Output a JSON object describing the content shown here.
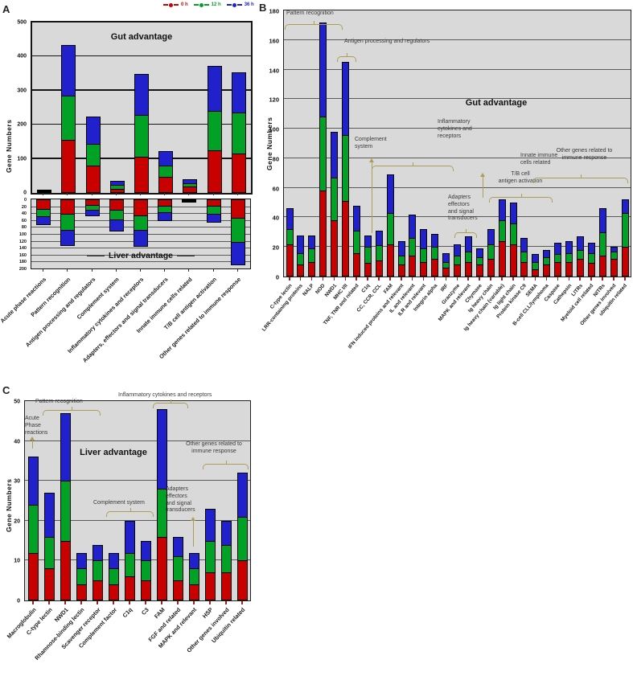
{
  "panel_labels": [
    "A",
    "B",
    "C"
  ],
  "legend": {
    "position": "top-right of panel A",
    "items": [
      {
        "label": "0 h",
        "color": "#C80000"
      },
      {
        "label": "12 h",
        "color": "#00A125"
      },
      {
        "label": "36 h",
        "color": "#2020CC"
      }
    ]
  },
  "chart_data": [
    {
      "panel": "A",
      "type": "bar",
      "subtype": "diverging stacked bars (up = gut, down = liver)",
      "ylabel": "Gene Numbers",
      "value_encoding": "cumulative_stack_top",
      "categories": [
        "Acute phase reactions",
        "Pattern recognition",
        "Antigen processing and regulators",
        "Complement system",
        "Inflammatory cytokines and receptors",
        "Adapters, effectors and signal transducers",
        "Innate immune cells related",
        "T/B cell antigen activation",
        "Other genes related to immune response"
      ],
      "up": {
        "title": "Gut advantage",
        "ylim": [
          0,
          500
        ],
        "yticks": [
          0,
          100,
          200,
          300,
          400,
          500
        ],
        "series": [
          {
            "name": "0 h",
            "color": "#C80000",
            "cumulative": [
              6,
              155,
              80,
              12,
              107,
              48,
              18,
              125,
              115
            ]
          },
          {
            "name": "12 h",
            "color": "#00A125",
            "cumulative": [
              8,
              285,
              145,
              24,
              228,
              80,
              28,
              240,
              235
            ]
          },
          {
            "name": "36 h",
            "color": "#2020CC",
            "cumulative": [
              10,
              435,
              225,
              35,
              348,
              122,
              40,
              372,
              355
            ]
          }
        ]
      },
      "down": {
        "title": "Liver advantage",
        "ylim": [
          0,
          200
        ],
        "yticks": [
          0,
          20,
          40,
          60,
          80,
          100,
          120,
          140,
          160,
          180,
          200
        ],
        "series": [
          {
            "name": "0 h",
            "color": "#C80000",
            "cumulative": [
              30,
              45,
              18,
              32,
              48,
              20,
              3,
              20,
              55
            ]
          },
          {
            "name": "12 h",
            "color": "#00A125",
            "cumulative": [
              50,
              90,
              32,
              60,
              90,
              40,
              6,
              45,
              125
            ]
          },
          {
            "name": "36 h",
            "color": "#2020CC",
            "cumulative": [
              75,
              135,
              48,
              93,
              138,
              62,
              10,
              68,
              190
            ]
          }
        ]
      }
    },
    {
      "panel": "B",
      "type": "bar",
      "subtype": "stacked bars",
      "title": "Gut advantage",
      "ylabel": "Gene Numbers",
      "ylim": [
        0,
        180
      ],
      "yticks": [
        0,
        20,
        40,
        60,
        80,
        100,
        120,
        140,
        160,
        180
      ],
      "value_encoding": "cumulative_stack_top",
      "categories": [
        "C-type lectin",
        "LRR-containing proteins",
        "NALP",
        "NOD",
        "NWD1",
        "MHC I/II",
        "TNF, TNR and related",
        "C1q",
        "CC, CCR, CCL",
        "FAM",
        "IFN induced proteins and relevant",
        "IL and relevant",
        "ILR and relevant",
        "Integrin alpha",
        "IRF",
        "Granzyme",
        "MAPK and relevant",
        "Chymase",
        "Ig heavy chain",
        "Ig heavy chain (variable)",
        "Ig light chain",
        "Protein kinase C9",
        "SEMA",
        "B-cell CLL/lymphoma",
        "Caspase",
        "Cathepsin",
        "LITRs",
        "Myeloid cell related",
        "NITRs",
        "Other genes involved",
        "ubiquitin related"
      ],
      "series": [
        {
          "name": "0 h",
          "color": "#C80000",
          "cumulative": [
            22,
            8,
            10,
            58,
            38,
            51,
            16,
            9,
            11,
            22,
            8,
            14,
            10,
            12,
            6,
            8,
            10,
            8,
            12,
            24,
            22,
            10,
            5,
            8,
            10,
            10,
            12,
            9,
            14,
            12,
            20
          ]
        },
        {
          "name": "12 h",
          "color": "#00A125",
          "cumulative": [
            32,
            16,
            19,
            108,
            67,
            96,
            31,
            20,
            21,
            43,
            14,
            26,
            19,
            20,
            10,
            14,
            17,
            13,
            22,
            38,
            36,
            17,
            10,
            13,
            15,
            16,
            18,
            16,
            30,
            17,
            43
          ]
        },
        {
          "name": "36 h",
          "color": "#2020CC",
          "cumulative": [
            46,
            28,
            28,
            172,
            98,
            145,
            48,
            28,
            31,
            69,
            24,
            42,
            32,
            29,
            16,
            22,
            27,
            19,
            32,
            52,
            50,
            26,
            15,
            18,
            23,
            24,
            27,
            23,
            46,
            20,
            52
          ]
        }
      ]
    },
    {
      "panel": "C",
      "type": "bar",
      "subtype": "stacked bars",
      "title": "Liver advantage",
      "ylabel": "Gene Numbers",
      "ylim": [
        0,
        50
      ],
      "yticks": [
        0,
        10,
        20,
        30,
        40,
        50
      ],
      "value_encoding": "cumulative_stack_top",
      "categories": [
        "Macroglobulin",
        "C-type lectin",
        "NWD1",
        "Rhamnose-binding lectin",
        "Scavenger receptor",
        "Complement factor",
        "C1q",
        "C3",
        "FAM",
        "FGF and related",
        "MAPK and relevant",
        "HSP",
        "Other genes involved",
        "Ubiquitin related"
      ],
      "series": [
        {
          "name": "0 h",
          "color": "#C80000",
          "cumulative": [
            12,
            8,
            15,
            4,
            5,
            4,
            6,
            5,
            16,
            5,
            4,
            7,
            7,
            10
          ]
        },
        {
          "name": "12 h",
          "color": "#00A125",
          "cumulative": [
            24,
            16,
            30,
            8,
            10,
            8,
            12,
            10,
            28,
            11,
            8,
            15,
            14,
            21
          ]
        },
        {
          "name": "36 h",
          "color": "#2020CC",
          "cumulative": [
            36,
            27,
            47,
            12,
            14,
            12,
            20,
            15,
            48,
            16,
            12,
            23,
            20,
            32
          ]
        }
      ]
    }
  ],
  "annotations_b": {
    "pattern_recognition": "Pattern recognition",
    "antigen_processing": "Antigen processing and regulators",
    "complement": "Complement\nsystem",
    "inflammatory": "Inflammatory\ncytokines and\nreceptors",
    "innate": "Innate immune\ncells related",
    "adapters": "Adapters\neffectors\nand signal\ntransducers",
    "tb_cell": "T/B cell\nantigen activation",
    "other_genes": "Other genes related to\nimmune response"
  },
  "annotations_c": {
    "acute": "Acute\nPhase\nreactions",
    "pattern_recognition": "Pattern recognition",
    "inflammatory": "Inflammatory cytokines and receptors",
    "complement": "Complement system",
    "adapters": "Adapters\neffectors\nand signal\ntransducers",
    "other_genes": "Other genes related to\nimmune response"
  }
}
